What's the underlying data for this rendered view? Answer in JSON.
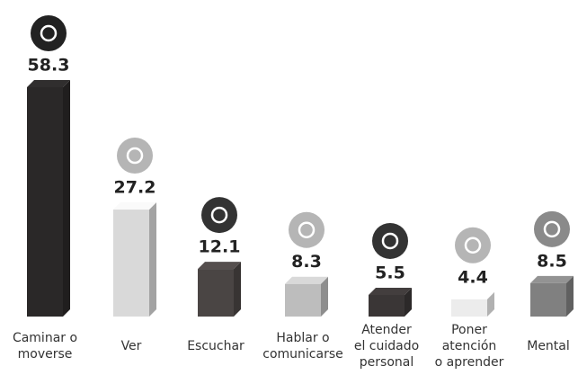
{
  "chart_data": {
    "type": "bar3d",
    "categories": [
      [
        "Caminar o",
        "moverse"
      ],
      [
        "Ver"
      ],
      [
        "Escuchar"
      ],
      [
        "Hablar o",
        "comunicarse"
      ],
      [
        "Atender",
        "el cuidado",
        "personal"
      ],
      [
        "Poner",
        "atención",
        "o aprender"
      ],
      [
        "Mental"
      ]
    ],
    "values": [
      58.3,
      27.2,
      12.1,
      8.3,
      5.5,
      4.4,
      8.5
    ],
    "colors": [
      "#2a2828",
      "#d9d9d9",
      "#4a4544",
      "#bdbdbd",
      "#3a3636",
      "#ececec",
      "#808080"
    ]
  }
}
